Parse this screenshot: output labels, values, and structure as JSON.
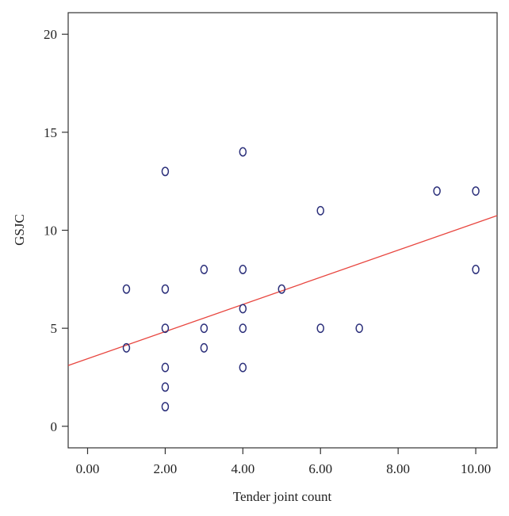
{
  "chart_data": {
    "type": "scatter",
    "title": "",
    "xlabel": "Tender joint count",
    "ylabel": "GSJC",
    "xlim": [
      -0.5,
      10.55
    ],
    "ylim": [
      -1.1,
      21.1
    ],
    "x_ticks": [
      0,
      2,
      4,
      6,
      8,
      10
    ],
    "x_tick_labels": [
      "0.00",
      "2.00",
      "4.00",
      "6.00",
      "8.00",
      "10.00"
    ],
    "y_ticks": [
      0,
      5,
      10,
      15,
      20
    ],
    "y_tick_labels": [
      "0",
      "5",
      "10",
      "15",
      "20"
    ],
    "grid": false,
    "legend": "none",
    "marker_color": "#2b2f7a",
    "fit_line_color": "#e8463f",
    "points": [
      {
        "x": 1,
        "y": 7
      },
      {
        "x": 1,
        "y": 4
      },
      {
        "x": 2,
        "y": 13
      },
      {
        "x": 2,
        "y": 7
      },
      {
        "x": 2,
        "y": 5
      },
      {
        "x": 2,
        "y": 3
      },
      {
        "x": 2,
        "y": 2
      },
      {
        "x": 2,
        "y": 1
      },
      {
        "x": 3,
        "y": 8
      },
      {
        "x": 3,
        "y": 5
      },
      {
        "x": 3,
        "y": 4
      },
      {
        "x": 4,
        "y": 14
      },
      {
        "x": 4,
        "y": 8
      },
      {
        "x": 4,
        "y": 6
      },
      {
        "x": 4,
        "y": 5
      },
      {
        "x": 4,
        "y": 3
      },
      {
        "x": 5,
        "y": 7
      },
      {
        "x": 6,
        "y": 11
      },
      {
        "x": 6,
        "y": 5
      },
      {
        "x": 7,
        "y": 5
      },
      {
        "x": 9,
        "y": 12
      },
      {
        "x": 10,
        "y": 12
      },
      {
        "x": 10,
        "y": 8
      }
    ],
    "fit_line": {
      "x": [
        -0.5,
        10.55
      ],
      "y": [
        3.1,
        10.75
      ]
    }
  }
}
